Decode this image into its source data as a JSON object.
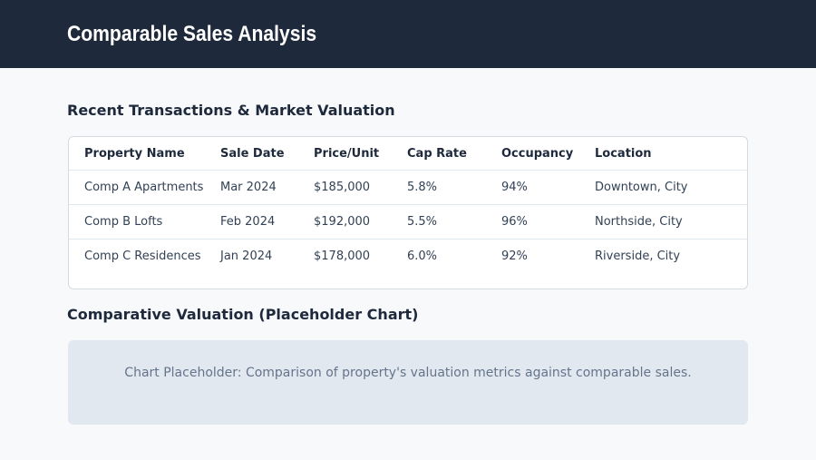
{
  "header": {
    "title": "Comparable Sales Analysis"
  },
  "section1": {
    "title": "Recent Transactions & Market Valuation"
  },
  "table": {
    "columns": [
      "Property Name",
      "Sale Date",
      "Price/Unit",
      "Cap Rate",
      "Occupancy",
      "Location"
    ],
    "rows": [
      [
        "Comp A Apartments",
        "Mar 2024",
        "$185,000",
        "5.8%",
        "94%",
        "Downtown, City"
      ],
      [
        "Comp B Lofts",
        "Feb 2024",
        "$192,000",
        "5.5%",
        "96%",
        "Northside, City"
      ],
      [
        "Comp C Residences",
        "Jan 2024",
        "$178,000",
        "6.0%",
        "92%",
        "Riverside, City"
      ]
    ]
  },
  "section2": {
    "title": "Comparative Valuation (Placeholder Chart)"
  },
  "placeholder": {
    "text": "Chart Placeholder: Comparison of property's valuation metrics against comparable sales."
  }
}
